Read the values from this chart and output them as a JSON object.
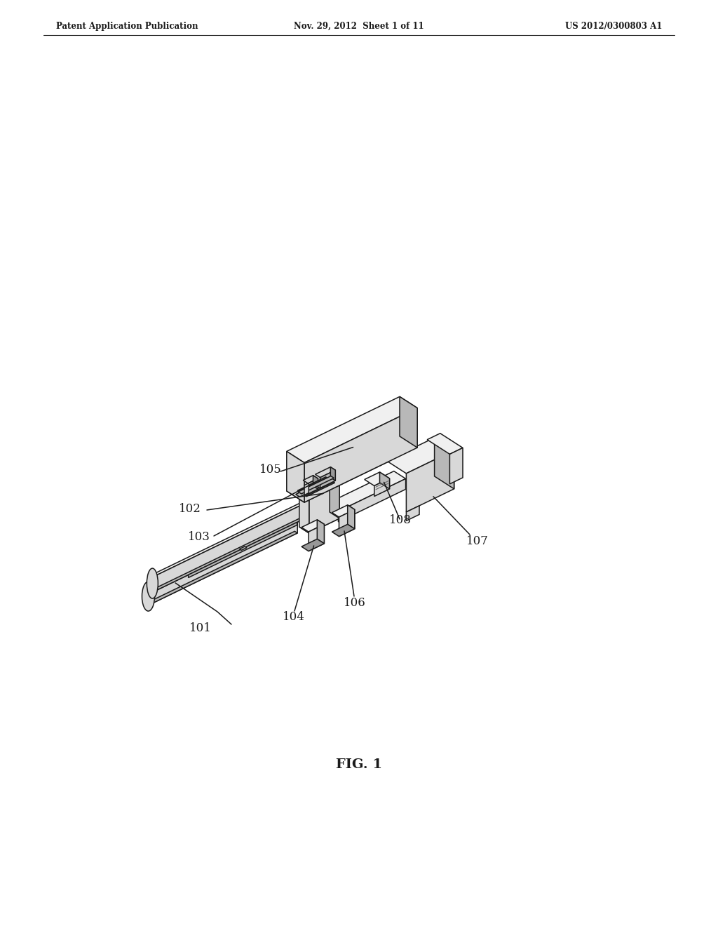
{
  "bg_color": "#ffffff",
  "line_color": "#1a1a1a",
  "line_width": 1.1,
  "fig_width": 10.24,
  "fig_height": 13.2,
  "header_left": "Patent Application Publication",
  "header_center": "Nov. 29, 2012  Sheet 1 of 11",
  "header_right": "US 2012/0300803 A1",
  "fig_label": "FIG. 1",
  "label_fontsize": 12,
  "header_fontsize": 8.5,
  "face_colors": {
    "light": "#f0f0f0",
    "mid": "#d8d8d8",
    "dark": "#b8b8b8",
    "vdark": "#989898"
  }
}
